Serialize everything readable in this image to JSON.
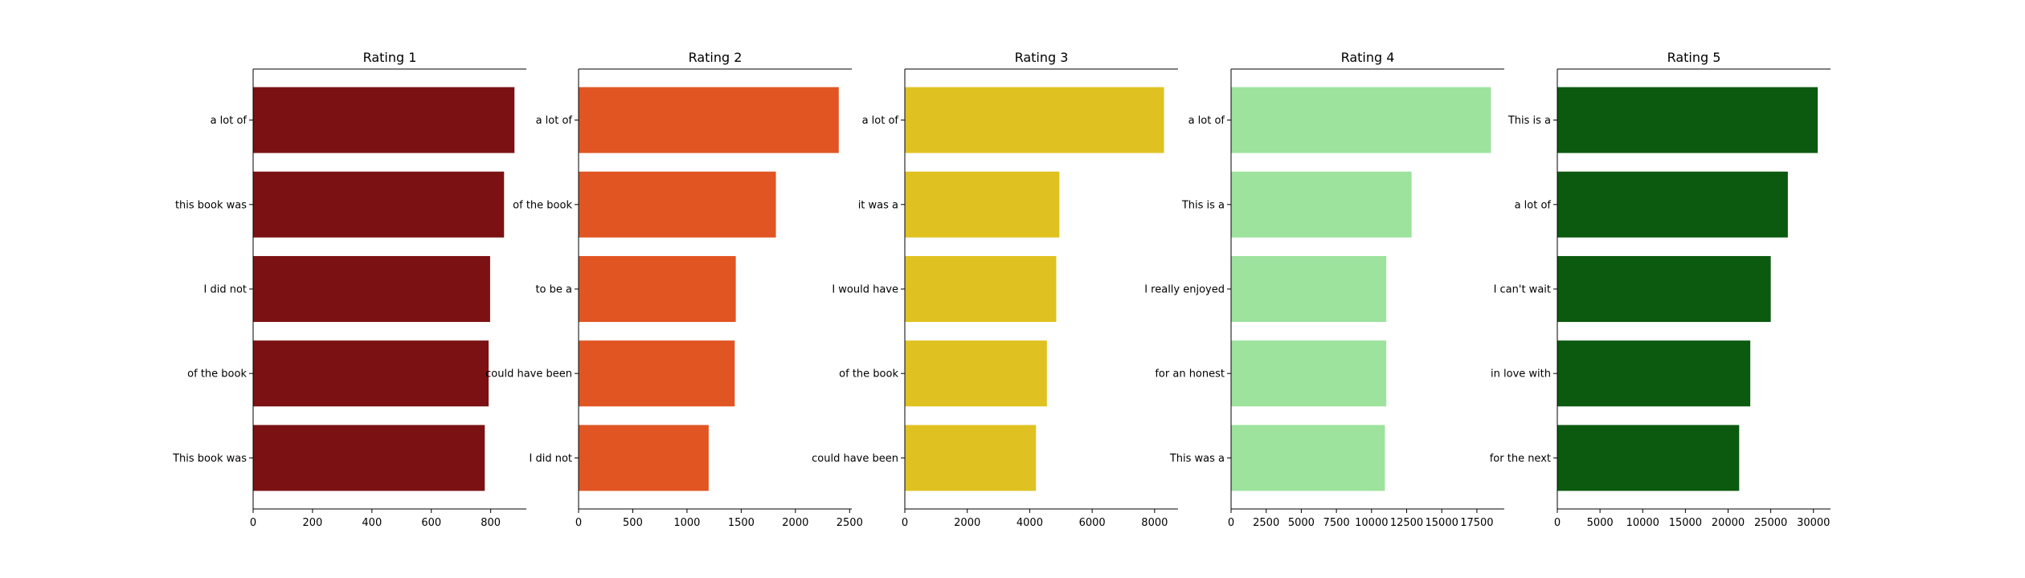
{
  "chart_data": [
    {
      "type": "bar",
      "orientation": "horizontal",
      "title": "Rating 1",
      "color": "#7b1113",
      "categories": [
        "a lot of",
        "this book was",
        "I did not",
        "of the book",
        "This book was"
      ],
      "values": [
        880,
        845,
        798,
        793,
        780
      ],
      "xlim": [
        0,
        920
      ],
      "xticks": [
        0,
        200,
        400,
        600,
        800
      ],
      "xtick_labels": [
        "0",
        "200",
        "400",
        "600",
        "800"
      ]
    },
    {
      "type": "bar",
      "orientation": "horizontal",
      "title": "Rating 2",
      "color": "#e05522",
      "categories": [
        "a lot of",
        "of the book",
        "to be a",
        "could have been",
        "I did not"
      ],
      "values": [
        2400,
        1820,
        1450,
        1440,
        1200
      ],
      "xlim": [
        0,
        2520
      ],
      "xticks": [
        0,
        500,
        1000,
        1500,
        2000,
        2500
      ],
      "xtick_labels": [
        "0",
        "500",
        "1000",
        "1500",
        "2000",
        "2500"
      ]
    },
    {
      "type": "bar",
      "orientation": "horizontal",
      "title": "Rating 3",
      "color": "#dfc221",
      "categories": [
        "a lot of",
        "it was a",
        "I would have",
        "of the book",
        "could have been"
      ],
      "values": [
        8300,
        4950,
        4850,
        4550,
        4200
      ],
      "xlim": [
        0,
        8750
      ],
      "xticks": [
        0,
        2000,
        4000,
        6000,
        8000
      ],
      "xtick_labels": [
        "0",
        "2000",
        "4000",
        "6000",
        "8000"
      ]
    },
    {
      "type": "bar",
      "orientation": "horizontal",
      "title": "Rating 4",
      "color": "#9de29d",
      "categories": [
        "a lot of",
        "This is a",
        "I really enjoyed",
        "for an honest",
        "This was a"
      ],
      "values": [
        18500,
        12850,
        11050,
        11050,
        10950
      ],
      "xlim": [
        0,
        19450
      ],
      "xticks": [
        0,
        2500,
        5000,
        7500,
        10000,
        12500,
        15000,
        17500
      ],
      "xtick_labels": [
        "0",
        "2500",
        "5000",
        "7500",
        "10000",
        "12500",
        "15000",
        "17500"
      ]
    },
    {
      "type": "bar",
      "orientation": "horizontal",
      "title": "Rating 5",
      "color": "#0c5a0f",
      "categories": [
        "This is a",
        "a lot of",
        "I can't wait",
        "in love with",
        "for the next"
      ],
      "values": [
        30500,
        27000,
        25000,
        22600,
        21300
      ],
      "xlim": [
        0,
        32000
      ],
      "xticks": [
        0,
        5000,
        10000,
        15000,
        20000,
        25000,
        30000
      ],
      "xtick_labels": [
        "0",
        "5000",
        "10000",
        "15000",
        "20000",
        "25000",
        "30000"
      ]
    }
  ]
}
